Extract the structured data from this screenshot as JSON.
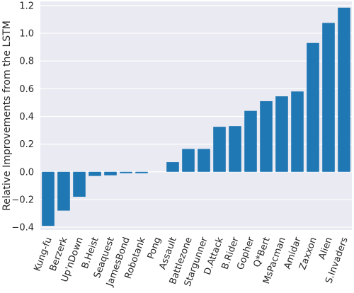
{
  "chart_data": {
    "type": "bar",
    "title": "",
    "xlabel": "",
    "ylabel": "Relative Improvements from the LSTM",
    "ylim": [
      -0.42,
      1.23
    ],
    "yticks": [
      -0.4,
      -0.2,
      0.0,
      0.2,
      0.4,
      0.6,
      0.8,
      1.0,
      1.2
    ],
    "ytick_labels": [
      "−0.4",
      "−0.2",
      "0.0",
      "0.2",
      "0.4",
      "0.6",
      "0.8",
      "1.0",
      "1.2"
    ],
    "grid": true,
    "background": "#eaeaf2",
    "bar_color": "#1f77b4",
    "categories": [
      "Kung-fu",
      "Berzerk",
      "Up'nDown",
      "B.Heist",
      "Seaquest",
      "JamesBond",
      "Robotank",
      "Pong",
      "Assault",
      "Battlezone",
      "Stargunner",
      "D.Attack",
      "B.Rider",
      "Gopher",
      "Q*Bert",
      "MsPacman",
      "Amidar",
      "Zaxxon",
      "Alien",
      "S.Invaders"
    ],
    "values": [
      -0.39,
      -0.28,
      -0.18,
      -0.03,
      -0.025,
      -0.01,
      -0.01,
      0.0,
      0.07,
      0.165,
      0.165,
      0.325,
      0.33,
      0.44,
      0.51,
      0.545,
      0.58,
      0.93,
      1.075,
      1.185
    ]
  }
}
